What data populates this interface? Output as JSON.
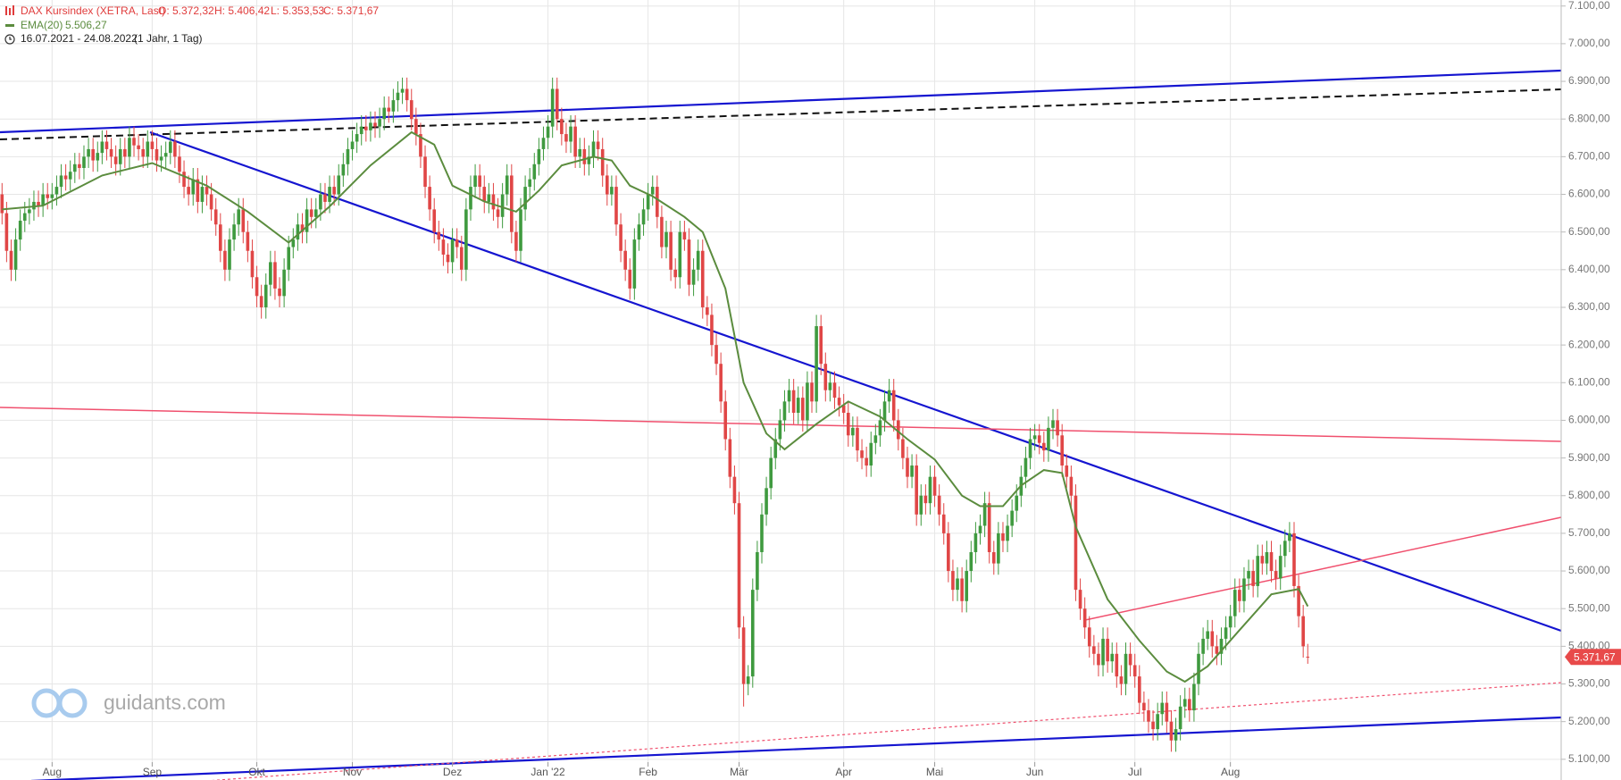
{
  "chart_data": {
    "type": "candlestick",
    "title": "DAX Kursindex (XETRA, Last)",
    "ohlc_labels": [
      "O: 5.372,32",
      "H: 5.406,42",
      "L: 5.353,53",
      "C: 5.371,67"
    ],
    "subtitle": "16.07.2021 - 24.08.2022",
    "period": "(1 Jahr, 1 Tag)",
    "watermark": "guidants.com",
    "up_color": "#3f9a3f",
    "down_color": "#e04646",
    "last_label": "5.371,67",
    "open": [
      6600,
      6550,
      6450,
      6400,
      6480,
      6530,
      6550,
      6560,
      6580,
      6570,
      6600,
      6590,
      6600,
      6620,
      6650,
      6640,
      6660,
      6680,
      6670,
      6700,
      6720,
      6690,
      6710,
      6740,
      6720,
      6700,
      6680,
      6720,
      6700,
      6750,
      6730,
      6720,
      6700,
      6740,
      6720,
      6690,
      6700,
      6710,
      6740,
      6700,
      6660,
      6620,
      6600,
      6640,
      6580,
      6620,
      6600,
      6560,
      6520,
      6450,
      6400,
      6480,
      6520,
      6560,
      6500,
      6450,
      6380,
      6330,
      6300,
      6360,
      6420,
      6350,
      6330,
      6400,
      6460,
      6480,
      6520,
      6500,
      6560,
      6540,
      6560,
      6600,
      6580,
      6620,
      6600,
      6650,
      6680,
      6720,
      6740,
      6760,
      6780,
      6770,
      6790,
      6780,
      6800,
      6830,
      6820,
      6850,
      6870,
      6880,
      6850,
      6800,
      6760,
      6700,
      6620,
      6560,
      6500,
      6480,
      6440,
      6420,
      6480,
      6460,
      6400,
      6560,
      6620,
      6650,
      6620,
      6580,
      6600,
      6560,
      6540,
      6600,
      6650,
      6500,
      6450,
      6560,
      6620,
      6640,
      6680,
      6720,
      6750,
      6780,
      6880,
      6800,
      6760,
      6740,
      6780,
      6700,
      6720,
      6680,
      6700,
      6740,
      6720,
      6650,
      6600,
      6620,
      6520,
      6450,
      6400,
      6350,
      6480,
      6520,
      6560,
      6600,
      6620,
      6540,
      6460,
      6500,
      6400,
      6380,
      6500,
      6480,
      6360,
      6400,
      6450,
      6300,
      6280,
      6200,
      6150,
      6050,
      5950,
      5850,
      5780,
      5450,
      5300,
      5320,
      5550,
      5650,
      5750,
      5820,
      5900,
      5950,
      6000,
      6050,
      6080,
      6020,
      6060,
      6000,
      6100,
      6050,
      6250,
      6150,
      6080,
      6100,
      6060,
      6040,
      6020,
      5960,
      5980,
      5920,
      5900,
      5880,
      5940,
      5960,
      6000,
      6050,
      6080,
      6000,
      5950,
      5900,
      5850,
      5880,
      5750,
      5800,
      5780,
      5850,
      5800,
      5750,
      5700,
      5600,
      5550,
      5580,
      5520,
      5600,
      5650,
      5700,
      5720,
      5780,
      5650,
      5620,
      5700,
      5680,
      5720,
      5760,
      5800,
      5850,
      5900,
      5950,
      5960,
      5940,
      5920,
      5980,
      6000,
      5960,
      5880,
      5850,
      5800,
      5550,
      5500,
      5450,
      5400,
      5380,
      5350,
      5420,
      5360,
      5380,
      5320,
      5300,
      5380,
      5350,
      5320,
      5250,
      5230,
      5200,
      5180,
      5220,
      5250,
      5200,
      5150,
      5180,
      5240,
      5260,
      5230,
      5300,
      5380,
      5420,
      5440,
      5400,
      5380,
      5420,
      5450,
      5480,
      5550,
      5520,
      5580,
      5600,
      5560,
      5640,
      5620,
      5650,
      5600,
      5580,
      5640,
      5680,
      5700,
      5560,
      5480,
      5372.32
    ],
    "high": [
      6630,
      6580,
      6480,
      6510,
      6560,
      6580,
      6590,
      6610,
      6610,
      6630,
      6630,
      6630,
      6650,
      6680,
      6680,
      6690,
      6710,
      6710,
      6730,
      6750,
      6750,
      6740,
      6770,
      6770,
      6750,
      6730,
      6750,
      6750,
      6780,
      6780,
      6760,
      6750,
      6770,
      6770,
      6750,
      6730,
      6740,
      6770,
      6770,
      6730,
      6690,
      6650,
      6670,
      6670,
      6650,
      6650,
      6630,
      6590,
      6550,
      6480,
      6510,
      6550,
      6590,
      6590,
      6530,
      6480,
      6410,
      6360,
      6390,
      6450,
      6450,
      6380,
      6430,
      6490,
      6510,
      6550,
      6550,
      6590,
      6590,
      6590,
      6630,
      6630,
      6650,
      6650,
      6680,
      6710,
      6750,
      6770,
      6790,
      6810,
      6810,
      6820,
      6820,
      6830,
      6860,
      6860,
      6880,
      6900,
      6910,
      6910,
      6880,
      6830,
      6790,
      6730,
      6650,
      6590,
      6530,
      6510,
      6470,
      6510,
      6510,
      6490,
      6590,
      6650,
      6680,
      6680,
      6650,
      6630,
      6630,
      6590,
      6630,
      6680,
      6680,
      6530,
      6590,
      6650,
      6670,
      6710,
      6750,
      6780,
      6810,
      6910,
      6910,
      6830,
      6790,
      6810,
      6810,
      6750,
      6750,
      6730,
      6770,
      6770,
      6750,
      6680,
      6650,
      6650,
      6550,
      6480,
      6430,
      6510,
      6550,
      6590,
      6630,
      6650,
      6650,
      6570,
      6530,
      6530,
      6430,
      6530,
      6530,
      6510,
      6430,
      6480,
      6480,
      6330,
      6310,
      6230,
      6180,
      6080,
      5980,
      5880,
      5810,
      5480,
      5350,
      5580,
      5680,
      5780,
      5850,
      5930,
      5980,
      6030,
      6080,
      6110,
      6110,
      6090,
      6090,
      6130,
      6130,
      6280,
      6280,
      6180,
      6130,
      6130,
      6090,
      6070,
      6050,
      6010,
      6010,
      5950,
      5930,
      5970,
      5990,
      6030,
      6080,
      6110,
      6110,
      6030,
      5980,
      5930,
      5910,
      5910,
      5830,
      5830,
      5880,
      5880,
      5830,
      5780,
      5730,
      5630,
      5610,
      5610,
      5630,
      5680,
      5730,
      5750,
      5810,
      5810,
      5680,
      5730,
      5730,
      5750,
      5790,
      5830,
      5880,
      5930,
      5980,
      5990,
      5990,
      5970,
      6010,
      6030,
      6030,
      5990,
      5910,
      5880,
      5830,
      5580,
      5530,
      5480,
      5430,
      5410,
      5450,
      5450,
      5410,
      5410,
      5350,
      5410,
      5410,
      5380,
      5350,
      5280,
      5260,
      5230,
      5250,
      5280,
      5280,
      5230,
      5210,
      5270,
      5290,
      5290,
      5330,
      5410,
      5450,
      5470,
      5470,
      5430,
      5450,
      5480,
      5510,
      5580,
      5580,
      5610,
      5630,
      5630,
      5670,
      5670,
      5680,
      5680,
      5630,
      5670,
      5710,
      5730,
      5730,
      5590,
      5510,
      5406.42
    ],
    "low": [
      6520,
      6420,
      6370,
      6370,
      6450,
      6500,
      6520,
      6530,
      6540,
      6540,
      6560,
      6560,
      6570,
      6590,
      6610,
      6610,
      6630,
      6640,
      6640,
      6670,
      6660,
      6660,
      6680,
      6690,
      6670,
      6650,
      6650,
      6670,
      6670,
      6700,
      6690,
      6670,
      6670,
      6690,
      6660,
      6660,
      6670,
      6680,
      6670,
      6630,
      6590,
      6570,
      6570,
      6550,
      6550,
      6570,
      6530,
      6490,
      6420,
      6370,
      6370,
      6450,
      6490,
      6470,
      6420,
      6350,
      6300,
      6270,
      6270,
      6330,
      6320,
      6300,
      6300,
      6370,
      6430,
      6450,
      6470,
      6470,
      6510,
      6510,
      6530,
      6550,
      6550,
      6570,
      6570,
      6620,
      6650,
      6690,
      6710,
      6730,
      6740,
      6740,
      6750,
      6750,
      6770,
      6790,
      6790,
      6820,
      6840,
      6820,
      6770,
      6730,
      6670,
      6590,
      6530,
      6470,
      6450,
      6410,
      6390,
      6390,
      6430,
      6370,
      6370,
      6530,
      6590,
      6590,
      6550,
      6550,
      6530,
      6510,
      6510,
      6570,
      6470,
      6420,
      6420,
      6530,
      6590,
      6610,
      6650,
      6690,
      6720,
      6750,
      6770,
      6730,
      6710,
      6710,
      6670,
      6670,
      6650,
      6650,
      6670,
      6690,
      6620,
      6570,
      6570,
      6490,
      6420,
      6370,
      6320,
      6320,
      6450,
      6490,
      6530,
      6570,
      6510,
      6430,
      6430,
      6370,
      6350,
      6350,
      6450,
      6330,
      6330,
      6370,
      6270,
      6250,
      6170,
      6120,
      6020,
      5920,
      5820,
      5750,
      5420,
      5240,
      5270,
      5290,
      5520,
      5620,
      5720,
      5790,
      5870,
      5920,
      5970,
      6020,
      5990,
      5990,
      5970,
      5970,
      6020,
      6020,
      6120,
      6050,
      6050,
      6030,
      6010,
      5990,
      5930,
      5930,
      5890,
      5870,
      5850,
      5850,
      5910,
      5930,
      5970,
      6020,
      5970,
      5920,
      5870,
      5820,
      5820,
      5720,
      5720,
      5750,
      5750,
      5770,
      5720,
      5670,
      5570,
      5520,
      5520,
      5490,
      5490,
      5570,
      5620,
      5670,
      5690,
      5620,
      5590,
      5590,
      5650,
      5650,
      5690,
      5730,
      5770,
      5820,
      5870,
      5920,
      5910,
      5890,
      5890,
      5950,
      5930,
      5850,
      5820,
      5770,
      5520,
      5470,
      5420,
      5370,
      5350,
      5320,
      5320,
      5330,
      5330,
      5290,
      5270,
      5270,
      5320,
      5290,
      5220,
      5200,
      5170,
      5150,
      5150,
      5190,
      5170,
      5120,
      5120,
      5150,
      5210,
      5200,
      5200,
      5270,
      5350,
      5390,
      5370,
      5350,
      5350,
      5390,
      5420,
      5450,
      5490,
      5490,
      5550,
      5530,
      5530,
      5590,
      5590,
      5570,
      5550,
      5550,
      5610,
      5650,
      5530,
      5450,
      5370,
      5353.53
    ],
    "close": [
      6550,
      6450,
      6400,
      6480,
      6530,
      6550,
      6560,
      6580,
      6570,
      6600,
      6590,
      6600,
      6620,
      6650,
      6640,
      6660,
      6680,
      6670,
      6700,
      6720,
      6690,
      6710,
      6740,
      6720,
      6700,
      6680,
      6720,
      6700,
      6750,
      6730,
      6720,
      6700,
      6740,
      6720,
      6690,
      6700,
      6710,
      6740,
      6700,
      6660,
      6620,
      6600,
      6640,
      6580,
      6620,
      6600,
      6560,
      6520,
      6450,
      6400,
      6480,
      6520,
      6560,
      6500,
      6450,
      6380,
      6330,
      6300,
      6360,
      6420,
      6350,
      6330,
      6400,
      6460,
      6480,
      6520,
      6500,
      6560,
      6540,
      6560,
      6600,
      6580,
      6620,
      6600,
      6650,
      6680,
      6720,
      6740,
      6760,
      6780,
      6770,
      6790,
      6780,
      6800,
      6830,
      6820,
      6850,
      6870,
      6880,
      6850,
      6800,
      6760,
      6700,
      6620,
      6560,
      6500,
      6480,
      6440,
      6420,
      6480,
      6460,
      6400,
      6560,
      6620,
      6650,
      6620,
      6580,
      6600,
      6560,
      6540,
      6600,
      6650,
      6500,
      6450,
      6560,
      6620,
      6640,
      6680,
      6720,
      6750,
      6780,
      6880,
      6800,
      6760,
      6740,
      6780,
      6700,
      6720,
      6680,
      6700,
      6740,
      6720,
      6650,
      6600,
      6620,
      6520,
      6450,
      6400,
      6350,
      6480,
      6520,
      6560,
      6600,
      6620,
      6540,
      6460,
      6500,
      6400,
      6380,
      6500,
      6480,
      6360,
      6400,
      6450,
      6300,
      6280,
      6200,
      6150,
      6050,
      5950,
      5850,
      5780,
      5450,
      5300,
      5320,
      5550,
      5650,
      5750,
      5820,
      5900,
      5950,
      6000,
      6050,
      6080,
      6020,
      6060,
      6000,
      6100,
      6050,
      6250,
      6150,
      6080,
      6100,
      6060,
      6040,
      6020,
      5960,
      5980,
      5920,
      5900,
      5880,
      5940,
      5960,
      6000,
      6050,
      6080,
      6000,
      5950,
      5900,
      5850,
      5880,
      5750,
      5800,
      5780,
      5850,
      5800,
      5750,
      5700,
      5600,
      5550,
      5580,
      5520,
      5600,
      5650,
      5700,
      5720,
      5780,
      5650,
      5620,
      5700,
      5680,
      5720,
      5760,
      5800,
      5850,
      5900,
      5950,
      5960,
      5940,
      5920,
      5980,
      6000,
      5960,
      5880,
      5850,
      5800,
      5550,
      5500,
      5450,
      5400,
      5380,
      5350,
      5420,
      5360,
      5380,
      5320,
      5300,
      5380,
      5350,
      5320,
      5250,
      5230,
      5200,
      5180,
      5220,
      5250,
      5200,
      5150,
      5180,
      5240,
      5260,
      5230,
      5300,
      5380,
      5420,
      5440,
      5400,
      5380,
      5420,
      5450,
      5480,
      5550,
      5520,
      5580,
      5600,
      5560,
      5640,
      5620,
      5650,
      5600,
      5580,
      5640,
      5680,
      5700,
      5560,
      5480,
      5400,
      5371.67
    ],
    "ema": {
      "name": "EMA(20)",
      "color": "#5b8c3e",
      "value_label": "5.506,27",
      "x": [
        0,
        9,
        22,
        33,
        45,
        54,
        63,
        72,
        81,
        90,
        95,
        99,
        106,
        113,
        118,
        123,
        130,
        134,
        138,
        143,
        150,
        154,
        159,
        163,
        168,
        172,
        179,
        186,
        193,
        199,
        205,
        211,
        215,
        220,
        224,
        229,
        233,
        236,
        243,
        250,
        256,
        260,
        265,
        272,
        279,
        285,
        287
      ],
      "values": [
        6560,
        6570,
        6650,
        6683,
        6623,
        6554,
        6472,
        6568,
        6677,
        6765,
        6732,
        6623,
        6581,
        6554,
        6610,
        6677,
        6700,
        6690,
        6623,
        6595,
        6540,
        6500,
        6350,
        6100,
        5965,
        5923,
        5990,
        6050,
        6010,
        5950,
        5896,
        5800,
        5772,
        5772,
        5827,
        5868,
        5860,
        5717,
        5525,
        5415,
        5333,
        5306,
        5347,
        5443,
        5538,
        5552,
        5506.27
      ]
    },
    "xlim": [
      -0.45,
      342.7
    ],
    "xticks": [
      {
        "value": 11,
        "label": "Aug"
      },
      {
        "value": 33,
        "label": "Sep"
      },
      {
        "value": 56,
        "label": "Okt"
      },
      {
        "value": 77,
        "label": "Nov"
      },
      {
        "value": 99,
        "label": "Dez"
      },
      {
        "value": 120,
        "label": "Jan '22"
      },
      {
        "value": 142,
        "label": "Feb"
      },
      {
        "value": 162,
        "label": "Mär"
      },
      {
        "value": 185,
        "label": "Apr"
      },
      {
        "value": 205,
        "label": "Mai"
      },
      {
        "value": 227,
        "label": "Jun"
      },
      {
        "value": 249,
        "label": "Jul"
      },
      {
        "value": 270,
        "label": "Aug"
      }
    ],
    "ylim": [
      5045,
      7116
    ],
    "yticks": [
      {
        "value": 5100,
        "label": "5.100,00"
      },
      {
        "value": 5200,
        "label": "5.200,00"
      },
      {
        "value": 5300,
        "label": "5.300,00"
      },
      {
        "value": 5400,
        "label": "5.400,00"
      },
      {
        "value": 5500,
        "label": "5.500,00"
      },
      {
        "value": 5600,
        "label": "5.600,00"
      },
      {
        "value": 5700,
        "label": "5.700,00"
      },
      {
        "value": 5800,
        "label": "5.800,00"
      },
      {
        "value": 5900,
        "label": "5.900,00"
      },
      {
        "value": 6000,
        "label": "6.000,00"
      },
      {
        "value": 6100,
        "label": "6.100,00"
      },
      {
        "value": 6200,
        "label": "6.200,00"
      },
      {
        "value": 6300,
        "label": "6.300,00"
      },
      {
        "value": 6400,
        "label": "6.400,00"
      },
      {
        "value": 6500,
        "label": "6.500,00"
      },
      {
        "value": 6600,
        "label": "6.600,00"
      },
      {
        "value": 6700,
        "label": "6.700,00"
      },
      {
        "value": 6800,
        "label": "6.800,00"
      },
      {
        "value": 6900,
        "label": "6.900,00"
      },
      {
        "value": 7000,
        "label": "7.000,00"
      },
      {
        "value": 7100,
        "label": "7.100,00"
      }
    ],
    "grid": true
  }
}
